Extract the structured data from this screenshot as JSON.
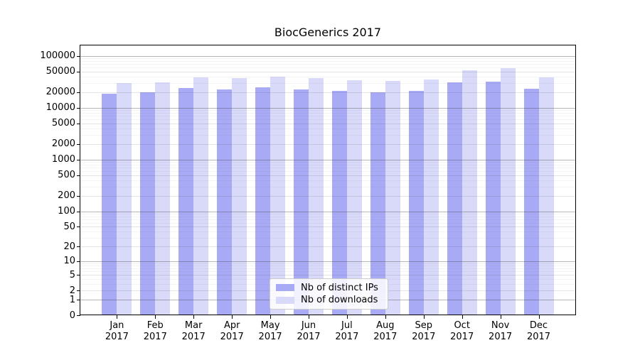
{
  "title": "BiocGenerics 2017",
  "chart_data": {
    "type": "bar",
    "title": "BiocGenerics 2017",
    "categories": [
      "Jan",
      "Feb",
      "Mar",
      "Apr",
      "May",
      "Jun",
      "Jul",
      "Aug",
      "Sep",
      "Oct",
      "Nov",
      "Dec"
    ],
    "category_year": "2017",
    "series": [
      {
        "name": "Nb of distinct IPs",
        "color": "#a9aaf6",
        "values": [
          18600,
          20000,
          23900,
          22900,
          24700,
          22700,
          21500,
          19600,
          21500,
          30500,
          32400,
          23400
        ]
      },
      {
        "name": "Nb of downloads",
        "color": "#d9daf9",
        "values": [
          30000,
          31400,
          38800,
          37600,
          39800,
          37600,
          34500,
          33200,
          35600,
          52700,
          57500,
          39000
        ]
      }
    ],
    "y_scale": "log10(1+x)",
    "y_ticks": [
      0,
      1,
      2,
      5,
      10,
      20,
      50,
      100,
      200,
      500,
      1000,
      2000,
      5000,
      10000,
      20000,
      50000,
      100000
    ],
    "ylim": [
      0,
      164000
    ],
    "xlabel": "",
    "ylabel": "",
    "grid": true,
    "legend_position": "lower-center-inside",
    "colors": {
      "grid_major": "#b4b4b4",
      "grid_mid": "#dfdfdf",
      "grid_minor": "#f1f1f1",
      "axis": "#000000",
      "background": "#ffffff"
    }
  }
}
